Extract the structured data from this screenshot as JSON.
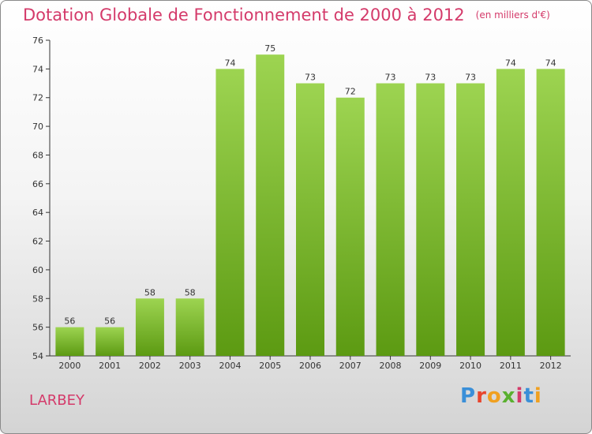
{
  "header": {
    "title": "Dotation Globale de Fonctionnement de 2000 à 2012",
    "unit": "(en milliers d'€)"
  },
  "footer": {
    "commune": "LARBEY",
    "logo": "Proxiti",
    "logo_colors": [
      "#3a8fd8",
      "#e8452c",
      "#f0a020",
      "#5ab030",
      "#d43a6a",
      "#3a8fd8",
      "#f0a020"
    ]
  },
  "colors": {
    "bar_top": "#9dd451",
    "bar_bottom": "#5c9a12",
    "title": "#d43a6a"
  },
  "chart_data": {
    "type": "bar",
    "title": "Dotation Globale de Fonctionnement de 2000 à 2012",
    "subtitle": "(en milliers d'€)",
    "xlabel": "",
    "ylabel": "",
    "categories": [
      "2000",
      "2001",
      "2002",
      "2003",
      "2004",
      "2005",
      "2006",
      "2007",
      "2008",
      "2009",
      "2010",
      "2011",
      "2012"
    ],
    "values": [
      56,
      56,
      58,
      58,
      74,
      75,
      73,
      72,
      73,
      73,
      73,
      74,
      74
    ],
    "ylim": [
      54,
      76
    ],
    "yticks": [
      54,
      56,
      58,
      60,
      62,
      64,
      66,
      68,
      70,
      72,
      74,
      76
    ],
    "grid": false,
    "data_labels": true
  }
}
